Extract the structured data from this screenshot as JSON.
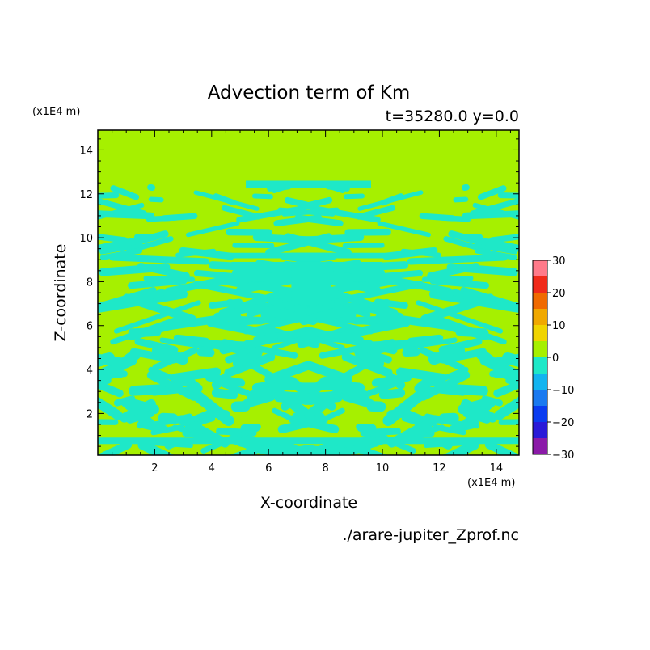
{
  "chart_data": {
    "type": "heatmap",
    "title": "Advection term of Km",
    "subtitle": "t=35280.0 y=0.0",
    "xlabel": "X-coordinate",
    "ylabel": "Z-coordinate",
    "x_unit": "(x1E4 m)",
    "y_unit": "(x1E4 m)",
    "xlim": [
      0.0,
      14.8
    ],
    "ylim": [
      0.1,
      14.9
    ],
    "x_ticks": [
      2,
      4,
      6,
      8,
      10,
      12,
      14
    ],
    "y_ticks": [
      2,
      4,
      6,
      8,
      10,
      12,
      14
    ],
    "grid": false,
    "colorbar": {
      "levels": [
        -30,
        -25,
        -20,
        -15,
        -10,
        -5,
        0,
        5,
        10,
        15,
        20,
        25,
        30
      ],
      "tick_labels": [
        "30",
        "20",
        "10",
        "0",
        "−10",
        "−20",
        "−30"
      ],
      "colors": [
        "#8b1aa8",
        "#2a1ad8",
        "#0a3cf0",
        "#1a7af0",
        "#12b4f0",
        "#1ee8c8",
        "#a6f000",
        "#f0d400",
        "#f0a800",
        "#f06a00",
        "#f02a1a",
        "#ff7a8a"
      ],
      "placement": "right"
    },
    "background_level": "0 to 5",
    "pattern_level": "-5 to 0",
    "source_file": "./arare-jupiter_Zprof.nc"
  }
}
